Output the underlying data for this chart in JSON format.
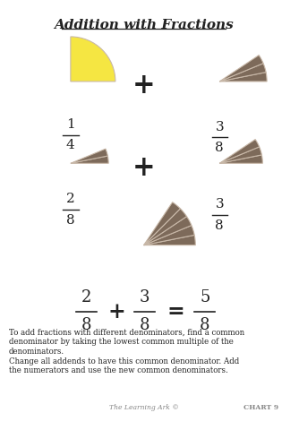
{
  "title": "Addition with Fractions",
  "bg_color": "#ffffff",
  "brown_color": "#7d6a5a",
  "yellow_color": "#f5e642",
  "sector_line_color": "#c8b8a8",
  "text_color": "#222222",
  "gray_text_color": "#888888",
  "para1": "To add fractions with different denominators, find a common\ndenominator by taking the lowest common multiple of the\ndenominators.",
  "para2": "Change all addends to have this common denominator. Add\nthe numerators and use the new common denominators.",
  "footer_left": "The Learning Ark ©",
  "footer_right": "CHART 9"
}
